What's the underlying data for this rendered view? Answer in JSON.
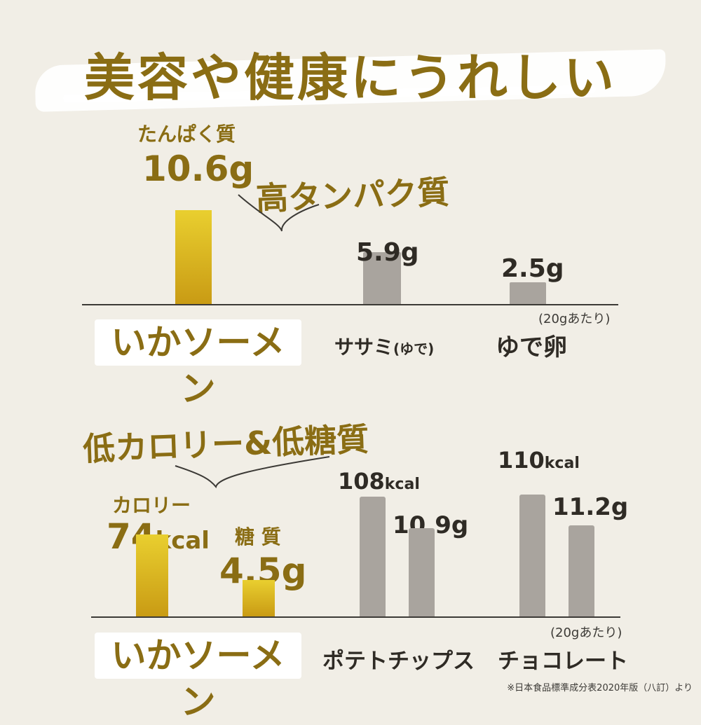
{
  "title": "美容や健康にうれしい",
  "chart_data": [
    {
      "type": "bar",
      "title": "高タンパク質",
      "metric_label": "たんぱく質",
      "unit": "g",
      "categories": [
        "いかソーメン",
        "ササミ(ゆで)",
        "ゆで卵"
      ],
      "series": [
        {
          "values": [
            10.6,
            5.9,
            2.5
          ]
        }
      ],
      "value_labels": [
        "10.6g",
        "5.9g",
        "2.5g"
      ],
      "note": "(20gあたり)",
      "highlight_category": "いかソーメン"
    },
    {
      "type": "bar",
      "title": "低カロリー&低糖質",
      "categories": [
        "いかソーメン",
        "ポテトチップス",
        "チョコレート"
      ],
      "series": [
        {
          "name": "カロリー",
          "values": [
            74,
            108,
            110
          ],
          "unit": "kcal"
        },
        {
          "name": "糖 質",
          "values": [
            4.5,
            10.9,
            11.2
          ],
          "unit": "g"
        }
      ],
      "value_labels": {
        "calorie": [
          "74kcal",
          "108kcal",
          "110kcal"
        ],
        "sugar": [
          "4.5g",
          "10.9g",
          "11.2g"
        ]
      },
      "note": "(20gあたり)",
      "highlight_category": "いかソーメン"
    }
  ],
  "chart1": {
    "title": "高タンパク質",
    "metric_label": "たんぱく質",
    "ika_value": "10.6g",
    "sasami_value": "5.9g",
    "egg_value": "2.5g",
    "ika_name": "いかソーメン",
    "sasami_name_main": "ササミ",
    "sasami_name_sub": "(ゆで)",
    "egg_name": "ゆで卵",
    "note": "(20gあたり)"
  },
  "chart2": {
    "title": "低カロリー&低糖質",
    "calorie_label": "カロリー",
    "sugar_label": "糖 質",
    "ika_cal_num": "74",
    "ika_cal_unit": "kcal",
    "ika_sugar": "4.5g",
    "chips_cal_num": "108",
    "chips_cal_unit": "kcal",
    "chips_sugar": "10.9g",
    "choco_cal_num": "110",
    "choco_cal_unit": "kcal",
    "choco_sugar": "11.2g",
    "ika_name": "いかソーメン",
    "chips_name": "ポテトチップス",
    "choco_name": "チョコレート",
    "note": "(20gあたり)"
  },
  "source": "※日本食品標準成分表2020年版（八訂）より",
  "colors": {
    "background": "#f1eee6",
    "olive": "#8a6d14",
    "gold_top": "#e9cf2f",
    "gold_bottom": "#c99b14",
    "gray_bar": "#a9a49e",
    "text_dark": "#2f2b25"
  }
}
